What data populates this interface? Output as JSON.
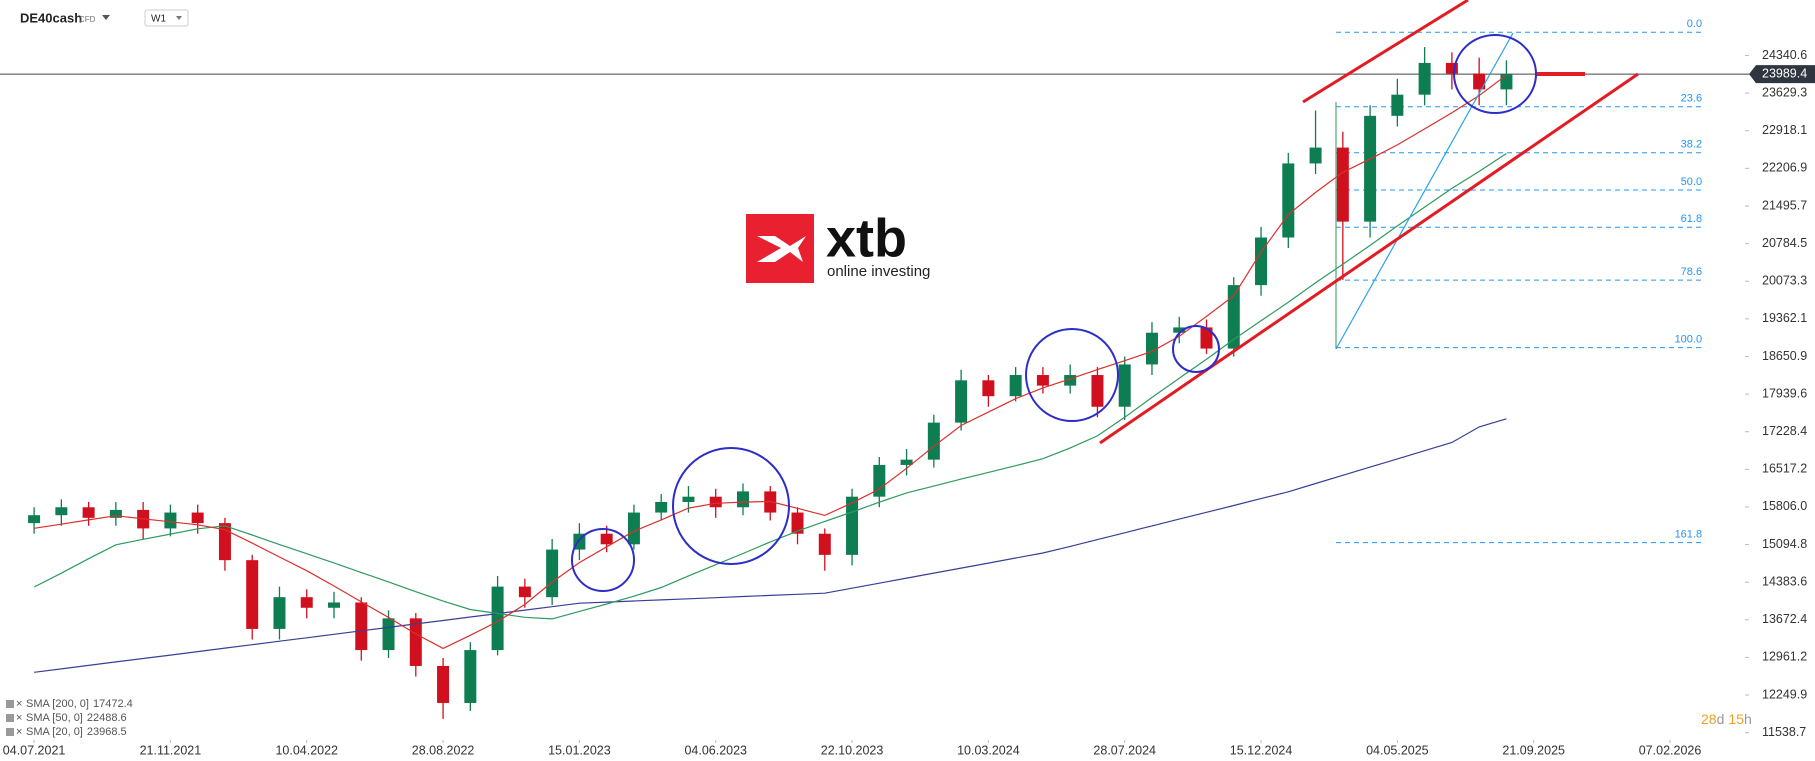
{
  "header": {
    "symbol": "DE40cash",
    "instrument_type": "CFD",
    "timeframe": "W1"
  },
  "logo": {
    "name": "xtb",
    "tagline": "online investing"
  },
  "countdown": {
    "days": 28,
    "days_unit": "d",
    "hours": 15,
    "hours_unit": "h"
  },
  "chart_data": {
    "type": "candlestick",
    "up_color": "#0f7d52",
    "down_color": "#d0101e",
    "x": [
      0,
      4,
      8,
      12,
      16,
      20,
      24,
      28,
      32,
      36,
      40,
      44,
      48,
      52,
      56,
      60,
      64,
      68,
      72,
      76,
      80,
      84,
      88,
      92,
      96,
      100,
      104,
      108,
      112,
      116,
      120,
      124,
      128,
      132,
      136,
      140,
      144,
      148,
      152,
      156,
      160,
      164,
      168,
      172,
      176,
      180,
      184,
      188,
      192,
      196,
      200,
      204,
      208,
      212,
      216
    ],
    "open": [
      15500,
      15650,
      15800,
      15600,
      15750,
      15400,
      15700,
      15500,
      14800,
      13500,
      14100,
      13900,
      14000,
      13100,
      13700,
      12800,
      12100,
      13100,
      14300,
      14100,
      15000,
      15300,
      15100,
      15700,
      15900,
      16000,
      15800,
      16100,
      15700,
      15300,
      14900,
      16000,
      16600,
      16700,
      17400,
      18200,
      17900,
      18300,
      18100,
      18300,
      17700,
      18500,
      19100,
      19200,
      18800,
      20000,
      20900,
      22300,
      22600,
      21200,
      23200,
      23600,
      24200,
      24000,
      23700
    ],
    "high": [
      15800,
      15950,
      15900,
      15900,
      15900,
      15850,
      15850,
      15600,
      14900,
      14300,
      14250,
      14200,
      14100,
      13850,
      13800,
      12950,
      13250,
      14500,
      14450,
      15200,
      15500,
      15450,
      15850,
      16050,
      16200,
      16150,
      16250,
      16200,
      15800,
      15400,
      16150,
      16750,
      16900,
      17550,
      18400,
      18300,
      18450,
      18450,
      18500,
      18450,
      18650,
      19300,
      19400,
      19350,
      20150,
      21100,
      22500,
      23300,
      22900,
      23400,
      23900,
      24500,
      24400,
      24300,
      24250
    ],
    "low": [
      15300,
      15450,
      15450,
      15450,
      15200,
      15250,
      15300,
      14600,
      13300,
      13300,
      13700,
      13700,
      12900,
      12950,
      12600,
      11800,
      11950,
      13000,
      13900,
      13950,
      14800,
      14950,
      15000,
      15550,
      15700,
      15600,
      15650,
      15550,
      15100,
      14600,
      14700,
      15800,
      16400,
      16550,
      17250,
      17700,
      17800,
      17950,
      17950,
      17500,
      17450,
      18300,
      18900,
      18700,
      18650,
      19800,
      20700,
      22100,
      20100,
      20900,
      23000,
      23400,
      23700,
      23400,
      23400
    ],
    "close": [
      15650,
      15800,
      15600,
      15750,
      15400,
      15700,
      15500,
      14800,
      13500,
      14100,
      13900,
      14000,
      13100,
      13700,
      12800,
      12100,
      13100,
      14300,
      14100,
      15000,
      15300,
      15100,
      15700,
      15900,
      16000,
      15800,
      16100,
      15700,
      15300,
      14900,
      16000,
      16600,
      16700,
      17400,
      18200,
      17900,
      18300,
      18100,
      18300,
      17700,
      18500,
      19100,
      19200,
      18800,
      20000,
      20900,
      22300,
      22600,
      21200,
      23200,
      23600,
      24200,
      24000,
      23700,
      23989.4
    ],
    "series": [
      {
        "name": "SMA [200, 0]",
        "color": "#3a3f96",
        "last": 17472.4,
        "values": [
          12680,
          12745,
          12810,
          12876,
          12941,
          13006,
          13072,
          13137,
          13202,
          13268,
          13333,
          13398,
          13464,
          13529,
          13594,
          13660,
          13725,
          13790,
          13855,
          13921,
          13986,
          14007,
          14028,
          14049,
          14070,
          14091,
          14112,
          14133,
          14154,
          14175,
          14270,
          14365,
          14460,
          14555,
          14650,
          14745,
          14840,
          14935,
          15060,
          15189,
          15318,
          15447,
          15576,
          15705,
          15834,
          15963,
          16092,
          16250,
          16405,
          16560,
          16715,
          16870,
          17025,
          17320,
          17472.4
        ]
      },
      {
        "name": "SMA [50, 0]",
        "color": "#2e9a5e",
        "last": 22488.6,
        "values": [
          14292,
          14554,
          14828,
          15090,
          15194,
          15293,
          15393,
          15450,
          15276,
          15095,
          14922,
          14748,
          14565,
          14388,
          14203,
          14026,
          13867,
          13792,
          13720,
          13690,
          13831,
          13972,
          14118,
          14283,
          14503,
          14714,
          14925,
          15145,
          15349,
          15533,
          15710,
          15895,
          16072,
          16201,
          16333,
          16460,
          16586,
          16718,
          16922,
          17150,
          17500,
          17877,
          18238,
          18600,
          18973,
          19325,
          19677,
          20044,
          20396,
          20750,
          21120,
          21474,
          21828,
          22150,
          22488.6
        ]
      },
      {
        "name": "SMA [20, 0]",
        "color": "#d9302c",
        "last": 23968.5,
        "values": [
          15402,
          15480,
          15562,
          15640,
          15581,
          15525,
          15469,
          15376,
          15123,
          14859,
          14600,
          14311,
          14010,
          13718,
          13406,
          13131,
          13380,
          13640,
          13964,
          14386,
          14754,
          15053,
          15347,
          15561,
          15785,
          15875,
          15898,
          15909,
          15780,
          15646,
          15882,
          16146,
          16536,
          16952,
          17346,
          17599,
          17852,
          18057,
          18226,
          18402,
          18571,
          18747,
          19032,
          19408,
          19800,
          20622,
          21334,
          21752,
          22133,
          22386,
          22650,
          22954,
          23257,
          23585,
          23968.5
        ]
      }
    ],
    "last_price": 23989.4,
    "fibonacci": {
      "high": 24780,
      "low": 18817,
      "x_range": [
        191,
        245
      ],
      "color": "#2196f3",
      "levels": [
        {
          "value": 0,
          "label": "0.0"
        },
        23.6,
        38.2,
        {
          "value": 50,
          "label": "50.0"
        },
        61.8,
        78.6,
        {
          "value": 100,
          "label": "100.0"
        },
        161.8
      ]
    },
    "xlim": [
      -5,
      251
    ],
    "xticks": [
      {
        "value": 0,
        "label": "04.07.2021"
      },
      {
        "value": 20,
        "label": "21.11.2021"
      },
      {
        "value": 40,
        "label": "10.04.2022"
      },
      {
        "value": 60,
        "label": "28.08.2022"
      },
      {
        "value": 80,
        "label": "15.01.2023"
      },
      {
        "value": 100,
        "label": "04.06.2023"
      },
      {
        "value": 120,
        "label": "22.10.2023"
      },
      {
        "value": 140,
        "label": "10.03.2024"
      },
      {
        "value": 160,
        "label": "28.07.2024"
      },
      {
        "value": 180,
        "label": "15.12.2024"
      },
      {
        "value": 200,
        "label": "04.05.2025"
      },
      {
        "value": 220,
        "label": "21.09.2025"
      },
      {
        "value": 240,
        "label": "07.02.2026"
      }
    ],
    "ylim": [
      11400,
      25390
    ],
    "yticks": [
      24340.6,
      23629.3,
      22918.1,
      22206.9,
      21495.7,
      20784.5,
      20073.3,
      19362.1,
      18650.9,
      17939.6,
      17228.4,
      16517.2,
      {
        "value": 15806,
        "label": "15806.0"
      },
      15094.8,
      14383.6,
      13672.4,
      12961.2,
      12249.9,
      11538.7
    ]
  }
}
